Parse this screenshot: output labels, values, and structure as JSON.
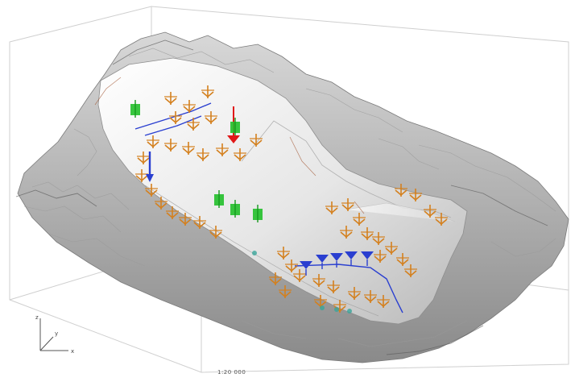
{
  "viewport": {
    "axis_labels": {
      "x": "x",
      "y": "y",
      "z": "z"
    },
    "scale_label": "1:20 000"
  },
  "colors": {
    "background": "#ffffff",
    "terrain_light": "#f4f4f4",
    "terrain_mid": "#c8c8c8",
    "terrain_dark": "#6e6e6e",
    "bounding_box": "#cfcfcf",
    "marker_orange": "#d4801e",
    "marker_green": "#22c02a",
    "marker_blue": "#2a3fd0",
    "marker_red": "#e01818",
    "marker_teal": "#3aa59a"
  },
  "icons": {
    "orange_markers": "orange-arrow-glyph-icon",
    "green_markers": "green-arrow-glyph-icon",
    "blue_markers": "blue-arrow-glyph-icon",
    "red_marker": "red-arrow-glyph-icon",
    "axis_triad": "axis-triad-icon"
  }
}
